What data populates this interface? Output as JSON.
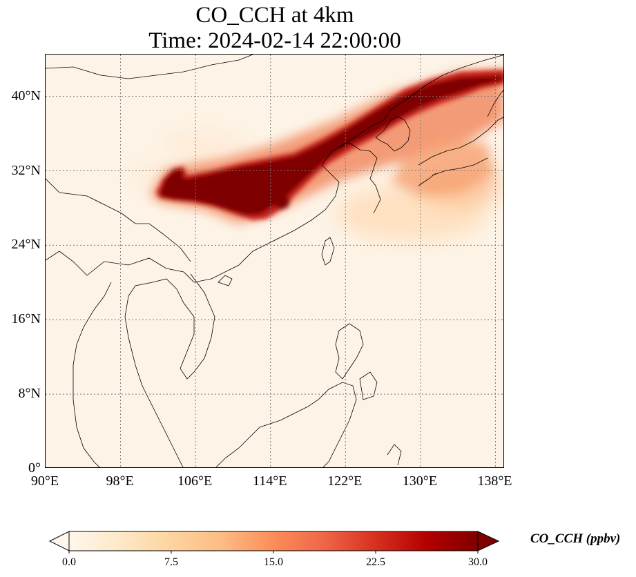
{
  "title": {
    "line1": "CO_CCH at 4km",
    "line2": "Time: 2024-02-14 22:00:00"
  },
  "map": {
    "lon_range": [
      90,
      139
    ],
    "lat_range": [
      0,
      44.5
    ],
    "lon_ticks": [
      "90°E",
      "98°E",
      "106°E",
      "114°E",
      "122°E",
      "130°E",
      "138°E"
    ],
    "lon_tick_values": [
      90,
      98,
      106,
      114,
      122,
      130,
      138
    ],
    "lat_ticks": [
      "0°",
      "8°N",
      "16°N",
      "24°N",
      "32°N",
      "40°N"
    ],
    "lat_tick_values": [
      0,
      8,
      16,
      24,
      32,
      40
    ],
    "gridlines": "dotted",
    "field": "CO_CCH",
    "plume": "high concentrations extending from south-central China northeast across the Yellow Sea over Korea to northern Japan"
  },
  "colorbar": {
    "label": "CO_CCH (ppbv)",
    "ticks": [
      "0.0",
      "7.5",
      "15.0",
      "22.5",
      "30.0"
    ],
    "min": 0,
    "max": 30,
    "extend": "both",
    "colors": [
      "#fff7ec",
      "#fee8c8",
      "#fdd49e",
      "#fdbb84",
      "#fc8d59",
      "#ef6548",
      "#d7301f",
      "#b30000",
      "#7f0000"
    ]
  }
}
